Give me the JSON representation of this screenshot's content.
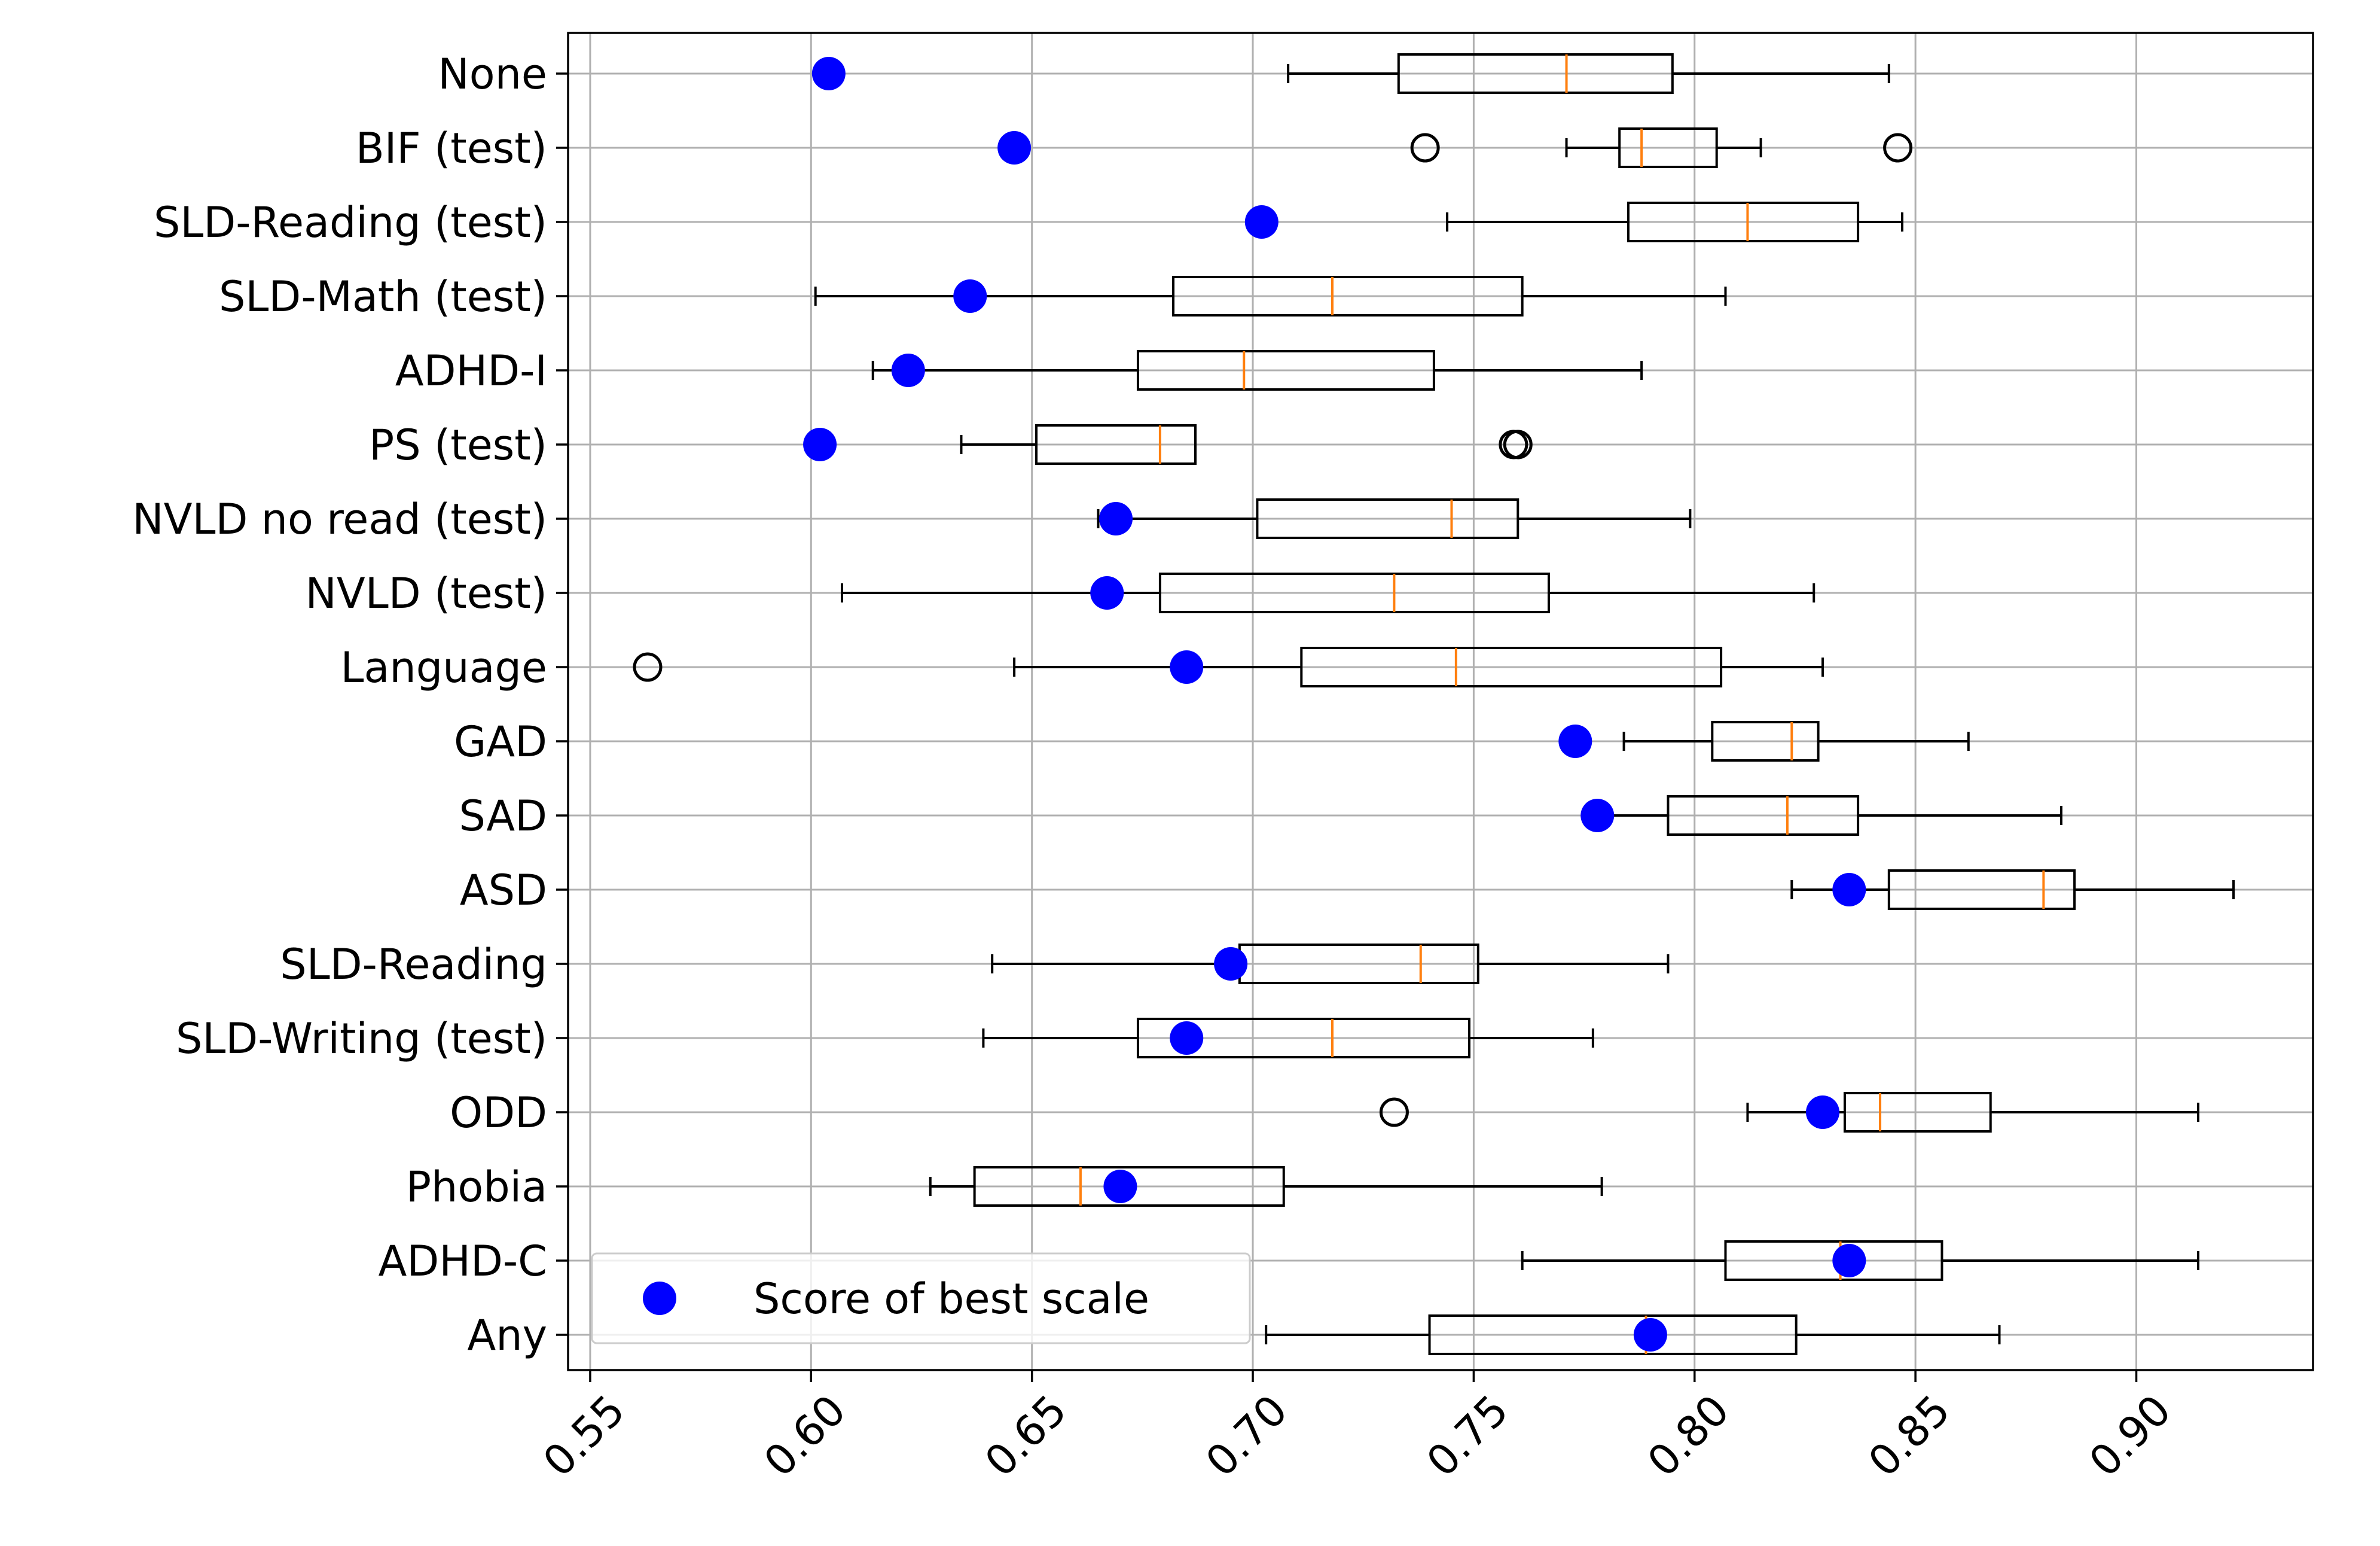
{
  "chart_data": {
    "type": "box",
    "orientation": "horizontal",
    "categories": [
      "None",
      "BIF (test)",
      "SLD-Reading (test)",
      "SLD-Math (test)",
      "ADHD-I",
      "PS (test)",
      "NVLD no read (test)",
      "NVLD (test)",
      "Language",
      "GAD",
      "SAD",
      "ASD",
      "SLD-Reading",
      "SLD-Writing (test)",
      "ODD",
      "Phobia",
      "ADHD-C",
      "Any"
    ],
    "boxes": [
      {
        "whisker_low": 0.708,
        "q1": 0.733,
        "median": 0.771,
        "q3": 0.795,
        "whisker_high": 0.844,
        "outliers": []
      },
      {
        "whisker_low": 0.771,
        "q1": 0.783,
        "median": 0.788,
        "q3": 0.805,
        "whisker_high": 0.815,
        "outliers": [
          0.739,
          0.846
        ]
      },
      {
        "whisker_low": 0.744,
        "q1": 0.785,
        "median": 0.812,
        "q3": 0.837,
        "whisker_high": 0.847,
        "outliers": []
      },
      {
        "whisker_low": 0.601,
        "q1": 0.682,
        "median": 0.718,
        "q3": 0.761,
        "whisker_high": 0.807,
        "outliers": []
      },
      {
        "whisker_low": 0.614,
        "q1": 0.674,
        "median": 0.698,
        "q3": 0.741,
        "whisker_high": 0.788,
        "outliers": []
      },
      {
        "whisker_low": 0.634,
        "q1": 0.651,
        "median": 0.679,
        "q3": 0.687,
        "whisker_high": 0.687,
        "outliers": [
          0.759,
          0.76
        ]
      },
      {
        "whisker_low": 0.665,
        "q1": 0.701,
        "median": 0.745,
        "q3": 0.76,
        "whisker_high": 0.799,
        "outliers": []
      },
      {
        "whisker_low": 0.607,
        "q1": 0.679,
        "median": 0.732,
        "q3": 0.767,
        "whisker_high": 0.827,
        "outliers": []
      },
      {
        "whisker_low": 0.646,
        "q1": 0.711,
        "median": 0.746,
        "q3": 0.806,
        "whisker_high": 0.829,
        "outliers": [
          0.563
        ]
      },
      {
        "whisker_low": 0.784,
        "q1": 0.804,
        "median": 0.822,
        "q3": 0.828,
        "whisker_high": 0.862,
        "outliers": []
      },
      {
        "whisker_low": 0.78,
        "q1": 0.794,
        "median": 0.821,
        "q3": 0.837,
        "whisker_high": 0.883,
        "outliers": []
      },
      {
        "whisker_low": 0.822,
        "q1": 0.844,
        "median": 0.879,
        "q3": 0.886,
        "whisker_high": 0.922,
        "outliers": []
      },
      {
        "whisker_low": 0.641,
        "q1": 0.697,
        "median": 0.738,
        "q3": 0.751,
        "whisker_high": 0.794,
        "outliers": []
      },
      {
        "whisker_low": 0.639,
        "q1": 0.674,
        "median": 0.718,
        "q3": 0.749,
        "whisker_high": 0.777,
        "outliers": []
      },
      {
        "whisker_low": 0.812,
        "q1": 0.834,
        "median": 0.842,
        "q3": 0.867,
        "whisker_high": 0.914,
        "outliers": [
          0.732
        ]
      },
      {
        "whisker_low": 0.627,
        "q1": 0.637,
        "median": 0.661,
        "q3": 0.707,
        "whisker_high": 0.779,
        "outliers": []
      },
      {
        "whisker_low": 0.761,
        "q1": 0.807,
        "median": 0.833,
        "q3": 0.856,
        "whisker_high": 0.914,
        "outliers": []
      },
      {
        "whisker_low": 0.703,
        "q1": 0.74,
        "median": 0.789,
        "q3": 0.823,
        "whisker_high": 0.869,
        "outliers": []
      }
    ],
    "best_scale_scores": [
      0.604,
      0.646,
      0.702,
      0.636,
      0.622,
      0.602,
      0.669,
      0.667,
      0.685,
      0.773,
      0.778,
      0.835,
      0.695,
      0.685,
      0.829,
      0.67,
      0.835,
      0.79
    ],
    "legend": {
      "label": "Score of best scale",
      "location": "lower-left"
    },
    "x_ticks": [
      "0.55",
      "0.60",
      "0.65",
      "0.70",
      "0.75",
      "0.80",
      "0.85",
      "0.90"
    ],
    "xlim": [
      0.545,
      0.94
    ],
    "grid": true,
    "title": "",
    "xlabel": "",
    "ylabel": ""
  },
  "colors": {
    "marker": "#0000ff",
    "median": "#ff7f0e",
    "box": "#000000",
    "grid": "#b0b0b0"
  }
}
